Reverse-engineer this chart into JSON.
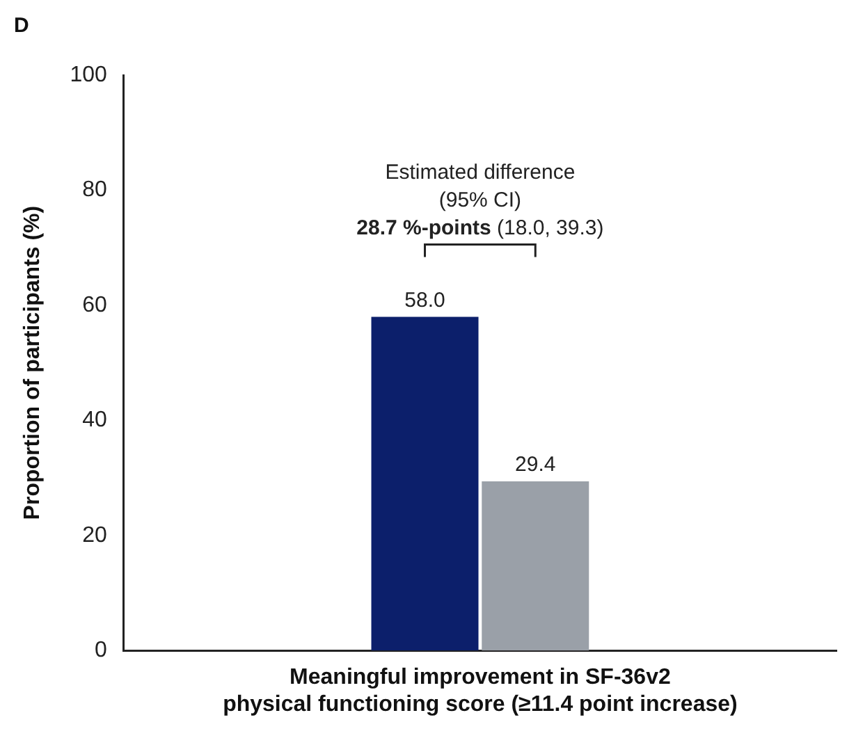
{
  "chart_data": {
    "type": "bar",
    "title": "D",
    "ylabel": "Proportion of participants (%)",
    "xlabel": "Meaningful improvement in SF-36v2\nphysical functioning score (≥11.4 point increase)",
    "categories": [
      null
    ],
    "series": [
      {
        "color": "#0c1f6b",
        "values": [
          58.0
        ],
        "value_labels": [
          "58.0"
        ]
      },
      {
        "color": "#9aa0a8",
        "values": [
          29.4
        ],
        "value_labels": [
          "29.4"
        ]
      }
    ],
    "ylim": [
      0,
      100
    ],
    "yticks": [
      0,
      20,
      40,
      60,
      80,
      100
    ],
    "grid": false,
    "legend": false,
    "annotations": [
      "Estimated difference",
      "(95% CI)",
      "28.7 %-points",
      "(18.0, 39.3)"
    ]
  }
}
